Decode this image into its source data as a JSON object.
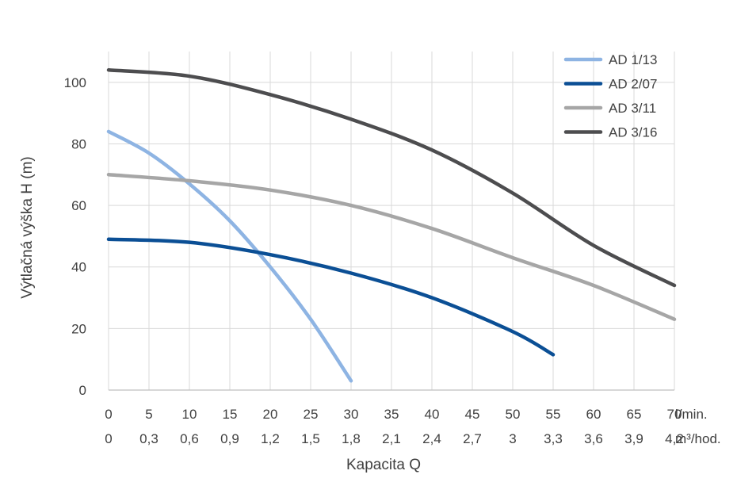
{
  "chart_data": {
    "type": "line",
    "title": "",
    "ylabel": "Výtlačná výška H (m)",
    "xlabel": "Kapacita Q",
    "ylim": [
      0,
      110
    ],
    "xlim": [
      0,
      70
    ],
    "grid": true,
    "legend_position": "top-right",
    "yticks": [
      "0",
      "20",
      "40",
      "60",
      "80",
      "100"
    ],
    "xticks_primary": [
      "0",
      "5",
      "10",
      "15",
      "20",
      "25",
      "30",
      "35",
      "40",
      "45",
      "50",
      "55",
      "60",
      "65",
      "70"
    ],
    "xticks_secondary": [
      "0",
      "0,3",
      "0,6",
      "0,9",
      "1,2",
      "1,5",
      "1,8",
      "2,1",
      "2,4",
      "2,7",
      "3",
      "3,3",
      "3,6",
      "3,9",
      "4,2"
    ],
    "x_unit_primary": "l/min.",
    "x_unit_secondary": "m³/hod.",
    "series": [
      {
        "name": "AD 1/13",
        "color": "#8eb4e3",
        "points": [
          [
            0,
            84
          ],
          [
            5,
            77
          ],
          [
            10,
            67
          ],
          [
            15,
            55
          ],
          [
            20,
            40
          ],
          [
            25,
            23
          ],
          [
            30,
            3
          ]
        ]
      },
      {
        "name": "AD 2/07",
        "color": "#0b4f95",
        "points": [
          [
            0,
            49
          ],
          [
            10,
            48
          ],
          [
            20,
            44
          ],
          [
            30,
            38
          ],
          [
            40,
            30
          ],
          [
            50,
            19
          ],
          [
            55,
            11.5
          ]
        ]
      },
      {
        "name": "AD 3/11",
        "color": "#a6a6a6",
        "points": [
          [
            0,
            70
          ],
          [
            10,
            68
          ],
          [
            20,
            65
          ],
          [
            30,
            60
          ],
          [
            40,
            52.5
          ],
          [
            50,
            43
          ],
          [
            60,
            34
          ],
          [
            70,
            23
          ]
        ]
      },
      {
        "name": "AD 3/16",
        "color": "#4d4d4f",
        "points": [
          [
            0,
            104
          ],
          [
            10,
            102
          ],
          [
            20,
            96
          ],
          [
            30,
            88
          ],
          [
            40,
            78
          ],
          [
            50,
            64
          ],
          [
            60,
            47
          ],
          [
            70,
            34
          ]
        ]
      }
    ]
  }
}
